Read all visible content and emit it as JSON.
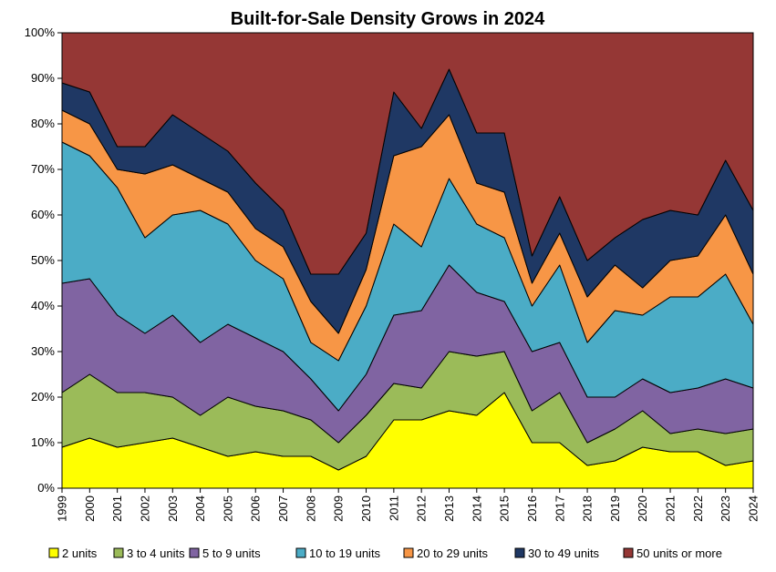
{
  "chart_data": {
    "type": "area",
    "stacked": true,
    "title": "Built-for-Sale Density Grows in 2024",
    "xlabel": "",
    "ylabel": "",
    "ylim": [
      0,
      100
    ],
    "y_unit": "%",
    "y_ticks": [
      "0%",
      "10%",
      "20%",
      "30%",
      "40%",
      "50%",
      "60%",
      "70%",
      "80%",
      "90%",
      "100%"
    ],
    "x": [
      "1999",
      "2000",
      "2001",
      "2002",
      "2003",
      "2004",
      "2005",
      "2006",
      "2007",
      "2008",
      "2009",
      "2010",
      "2011",
      "2012",
      "2013",
      "2014",
      "2015",
      "2016",
      "2017",
      "2018",
      "2019",
      "2020",
      "2021",
      "2022",
      "2023",
      "2024"
    ],
    "grid": false,
    "legend_position": "bottom",
    "series": [
      {
        "name": "2 units",
        "color": "#ffff00",
        "values": [
          9,
          11,
          9,
          10,
          11,
          9,
          7,
          8,
          7,
          7,
          4,
          7,
          15,
          15,
          17,
          16,
          21,
          10,
          10,
          5,
          6,
          9,
          8,
          8,
          5,
          6
        ]
      },
      {
        "name": "3 to 4 units",
        "color": "#9bbb59",
        "values": [
          12,
          14,
          12,
          11,
          9,
          7,
          13,
          10,
          10,
          8,
          6,
          9,
          8,
          7,
          13,
          13,
          9,
          7,
          11,
          5,
          7,
          8,
          4,
          5,
          7,
          7
        ]
      },
      {
        "name": "5 to 9 units",
        "color": "#8064a2",
        "values": [
          24,
          21,
          17,
          13,
          18,
          16,
          16,
          15,
          13,
          9,
          7,
          9,
          15,
          17,
          19,
          14,
          11,
          13,
          11,
          10,
          7,
          7,
          9,
          9,
          12,
          9
        ]
      },
      {
        "name": "10 to 19 units",
        "color": "#4bacc6",
        "values": [
          31,
          27,
          28,
          21,
          22,
          29,
          22,
          17,
          16,
          8,
          11,
          15,
          20,
          14,
          19,
          15,
          14,
          10,
          17,
          12,
          19,
          14,
          21,
          20,
          23,
          14
        ]
      },
      {
        "name": "20 to 29 units",
        "color": "#f79646",
        "values": [
          7,
          7,
          4,
          14,
          11,
          7,
          7,
          7,
          7,
          9,
          6,
          8,
          15,
          22,
          14,
          9,
          10,
          5,
          7,
          10,
          10,
          6,
          8,
          9,
          13,
          11
        ]
      },
      {
        "name": "30 to 49 units",
        "color": "#1f3864",
        "values": [
          6,
          7,
          5,
          6,
          11,
          10,
          9,
          10,
          8,
          6,
          13,
          8,
          14,
          4,
          10,
          11,
          13,
          6,
          8,
          8,
          6,
          15,
          11,
          9,
          12,
          14
        ]
      },
      {
        "name": "50 units or more",
        "color": "#953735",
        "values": [
          11,
          13,
          25,
          25,
          18,
          22,
          26,
          33,
          39,
          53,
          53,
          44,
          13,
          21,
          8,
          22,
          22,
          49,
          36,
          50,
          45,
          41,
          39,
          40,
          28,
          39
        ]
      }
    ]
  }
}
